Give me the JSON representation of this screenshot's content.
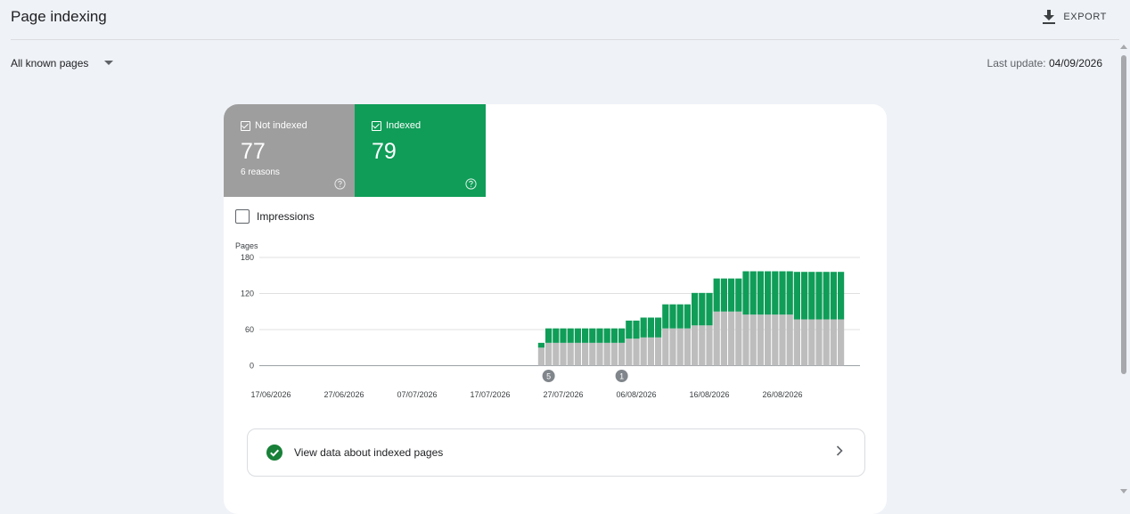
{
  "header": {
    "title": "Page indexing",
    "export_label": "EXPORT"
  },
  "filter": {
    "label": "All known pages"
  },
  "last_update": {
    "label": "Last update:",
    "date": "04/09/2026"
  },
  "tiles": [
    {
      "label": "Not indexed",
      "value": "77",
      "sub": "6 reasons",
      "color": "#9e9e9e"
    },
    {
      "label": "Indexed",
      "value": "79",
      "color": "#0f9d58"
    }
  ],
  "impressions_label": "Impressions",
  "view_data_label": "View data about indexed pages",
  "chart_data": {
    "type": "bar",
    "stacked": true,
    "ylabel": "Pages",
    "ylim": [
      0,
      180
    ],
    "yticks": [
      0,
      60,
      120,
      180
    ],
    "x_tick_labels": [
      "17/06/2026",
      "27/06/2026",
      "07/07/2026",
      "17/07/2026",
      "27/07/2026",
      "06/08/2026",
      "16/08/2026",
      "26/08/2026"
    ],
    "annotations": [
      {
        "label": "5",
        "category": "25/07/2026"
      },
      {
        "label": "1",
        "category": "04/08/2026"
      }
    ],
    "colors": {
      "not_indexed": "#bdbdbd",
      "indexed": "#0f9d58"
    },
    "categories": [
      "24/07/2026",
      "25/07/2026",
      "26/07/2026",
      "27/07/2026",
      "28/07/2026",
      "29/07/2026",
      "30/07/2026",
      "31/07/2026",
      "01/08/2026",
      "02/08/2026",
      "03/08/2026",
      "04/08/2026",
      "05/08/2026",
      "06/08/2026",
      "07/08/2026",
      "08/08/2026",
      "09/08/2026",
      "10/08/2026",
      "11/08/2026",
      "12/08/2026",
      "13/08/2026",
      "14/08/2026",
      "15/08/2026",
      "16/08/2026",
      "17/08/2026",
      "18/08/2026",
      "19/08/2026",
      "20/08/2026",
      "21/08/2026",
      "22/08/2026",
      "23/08/2026",
      "24/08/2026",
      "25/08/2026",
      "26/08/2026",
      "27/08/2026",
      "28/08/2026",
      "29/08/2026",
      "30/08/2026",
      "31/08/2026",
      "01/09/2026",
      "02/09/2026",
      "03/09/2026"
    ],
    "series": [
      {
        "name": "Not indexed",
        "values": [
          30,
          38,
          38,
          38,
          38,
          38,
          38,
          38,
          38,
          38,
          38,
          38,
          45,
          45,
          47,
          47,
          47,
          62,
          62,
          62,
          62,
          67,
          67,
          67,
          90,
          90,
          90,
          90,
          85,
          85,
          85,
          85,
          85,
          85,
          85,
          77,
          77,
          77,
          77,
          77,
          77,
          77
        ]
      },
      {
        "name": "Indexed",
        "values": [
          8,
          24,
          24,
          24,
          24,
          24,
          24,
          24,
          24,
          24,
          24,
          24,
          30,
          30,
          33,
          33,
          33,
          40,
          40,
          40,
          40,
          54,
          54,
          54,
          55,
          55,
          55,
          55,
          72,
          72,
          72,
          72,
          72,
          72,
          72,
          79,
          79,
          79,
          79,
          79,
          79,
          79
        ]
      }
    ]
  }
}
